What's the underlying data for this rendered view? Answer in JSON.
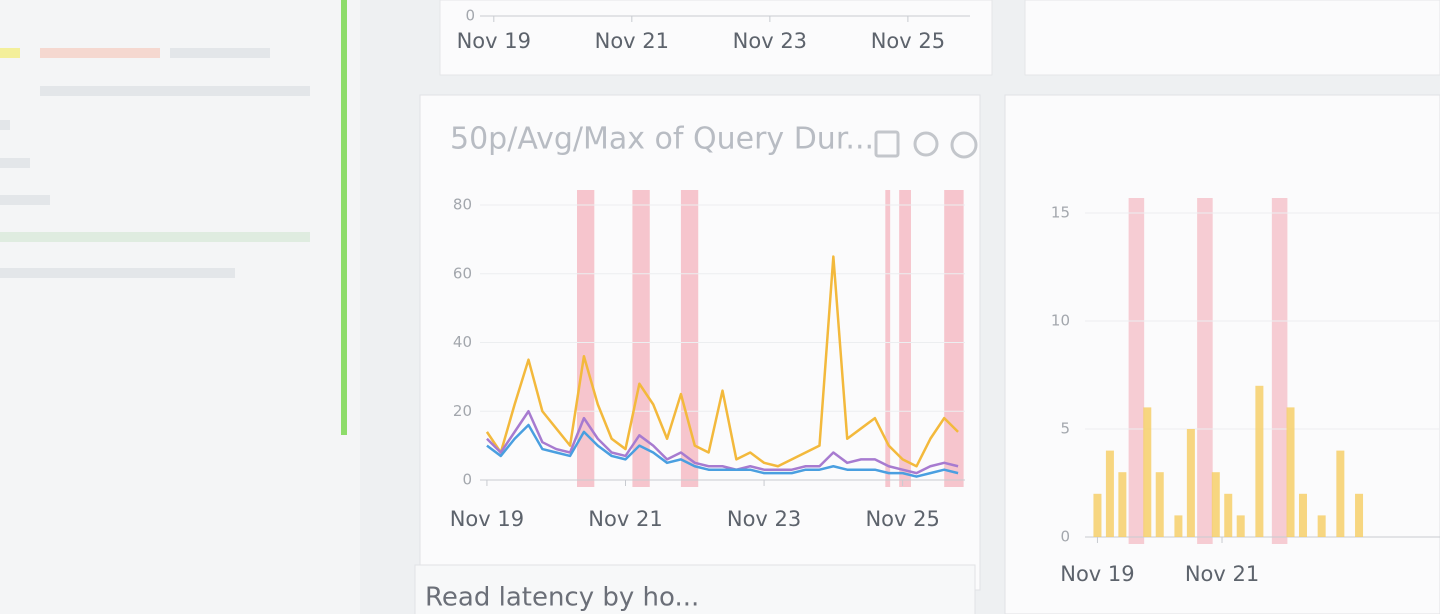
{
  "chart_data": [
    {
      "type": "axes",
      "xlim": [
        18.8,
        25.9
      ],
      "ylim": [
        0,
        80
      ],
      "yticks": [
        0
      ],
      "xticks": [
        {
          "value": 19,
          "label": "Nov 19"
        },
        {
          "value": 21,
          "label": "Nov 21"
        },
        {
          "value": 23,
          "label": "Nov 23"
        },
        {
          "value": 25,
          "label": "Nov 25"
        }
      ]
    },
    {
      "type": "line",
      "title": "50p/Avg/Max of Query Dur...",
      "xlim": [
        18.9,
        25.9
      ],
      "ylim": [
        0,
        80
      ],
      "yticks": [
        0,
        20,
        40,
        60,
        80
      ],
      "xticks": [
        {
          "value": 19,
          "label": "Nov 19"
        },
        {
          "value": 21,
          "label": "Nov 21"
        },
        {
          "value": 23,
          "label": "Nov 23"
        },
        {
          "value": 25,
          "label": "Nov 25"
        }
      ],
      "bands": [
        {
          "from": 20.3,
          "to": 20.55,
          "color": "#f5b8c0"
        },
        {
          "from": 21.1,
          "to": 21.35,
          "color": "#f5b8c0"
        },
        {
          "from": 21.8,
          "to": 22.05,
          "color": "#f5b8c0"
        },
        {
          "from": 24.75,
          "to": 24.82,
          "color": "#f5b8c0"
        },
        {
          "from": 24.95,
          "to": 25.12,
          "color": "#f5b8c0"
        },
        {
          "from": 25.6,
          "to": 25.88,
          "color": "#f5b8c0"
        }
      ],
      "x": [
        19.0,
        19.2,
        19.4,
        19.6,
        19.8,
        20.0,
        20.2,
        20.4,
        20.6,
        20.8,
        21.0,
        21.2,
        21.4,
        21.6,
        21.8,
        22.0,
        22.2,
        22.4,
        22.6,
        22.8,
        23.0,
        23.2,
        23.4,
        23.6,
        23.8,
        24.0,
        24.2,
        24.4,
        24.6,
        24.8,
        25.0,
        25.2,
        25.4,
        25.6,
        25.8
      ],
      "series": [
        {
          "name": "max",
          "color": "#f3b93c",
          "values": [
            14,
            8,
            22,
            35,
            20,
            15,
            10,
            36,
            22,
            12,
            9,
            28,
            22,
            12,
            25,
            10,
            8,
            26,
            6,
            8,
            5,
            4,
            6,
            8,
            10,
            65,
            12,
            15,
            18,
            10,
            6,
            4,
            12,
            18,
            14
          ]
        },
        {
          "name": "avg",
          "color": "#a77bd0",
          "values": [
            12,
            8,
            14,
            20,
            11,
            9,
            8,
            18,
            12,
            8,
            7,
            13,
            10,
            6,
            8,
            5,
            4,
            4,
            3,
            4,
            3,
            3,
            3,
            4,
            4,
            8,
            5,
            6,
            6,
            4,
            3,
            2,
            4,
            5,
            4
          ]
        },
        {
          "name": "p50",
          "color": "#4a9fe0",
          "values": [
            10,
            7,
            12,
            16,
            9,
            8,
            7,
            14,
            10,
            7,
            6,
            10,
            8,
            5,
            6,
            4,
            3,
            3,
            3,
            3,
            2,
            2,
            2,
            3,
            3,
            4,
            3,
            3,
            3,
            2,
            2,
            1,
            2,
            3,
            2
          ]
        }
      ]
    },
    {
      "type": "bar",
      "xlim": [
        18.8,
        24.5
      ],
      "ylim": [
        0,
        15
      ],
      "yticks": [
        0,
        5,
        10,
        15
      ],
      "xticks": [
        {
          "value": 19,
          "label": "Nov 19"
        },
        {
          "value": 21,
          "label": "Nov 21"
        }
      ],
      "bands": [
        {
          "from": 19.5,
          "to": 19.75,
          "color": "#f5c0c8"
        },
        {
          "from": 20.6,
          "to": 20.85,
          "color": "#f5c0c8"
        },
        {
          "from": 21.8,
          "to": 22.05,
          "color": "#f5c0c8"
        }
      ],
      "x": [
        19.0,
        19.2,
        19.4,
        19.8,
        20.0,
        20.3,
        20.5,
        20.9,
        21.1,
        21.3,
        21.6,
        22.1,
        22.3,
        22.6,
        22.9,
        23.2
      ],
      "series": [
        {
          "name": "values",
          "color": "#f6cf6a",
          "values": [
            2,
            4,
            3,
            6,
            3,
            1,
            5,
            3,
            2,
            1,
            7,
            6,
            2,
            1,
            4,
            2
          ]
        }
      ]
    }
  ],
  "panel": {
    "footer_title": "Read latency by ho..."
  }
}
